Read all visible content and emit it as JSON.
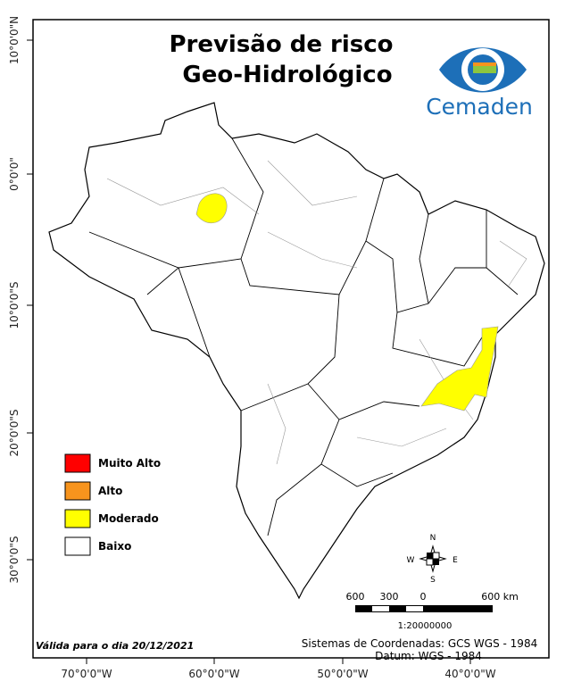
{
  "title": [
    "Previsão de risco",
    "Geo-Hidrológico"
  ],
  "logo": "Cemaden",
  "legend": [
    {
      "label": "Muito Alto",
      "color": "#ff0000"
    },
    {
      "label": "Alto",
      "color": "#f7941d"
    },
    {
      "label": "Moderado",
      "color": "#ffff00"
    },
    {
      "label": "Baixo",
      "color": "#ffffff"
    }
  ],
  "lat_labels": [
    "10°0'0\"N",
    "0°0'0\"",
    "10°0'0\"S",
    "20°0'0\"S",
    "30°0'0\"S"
  ],
  "lon_labels": [
    "70°0'0\"W",
    "60°0'0\"W",
    "50°0'0\"W",
    "40°0'0\"W"
  ],
  "compass": {
    "n": "N",
    "s": "S",
    "e": "E",
    "w": "W"
  },
  "scale": {
    "labels": [
      "600",
      "300",
      "0",
      "600 km"
    ],
    "ratio": "1:20000000"
  },
  "validity": "Válida para o dia 20/12/2021",
  "coords": [
    "Sistemas de Coordenadas: GCS WGS - 1984",
    "Datum: WGS - 1984"
  ]
}
